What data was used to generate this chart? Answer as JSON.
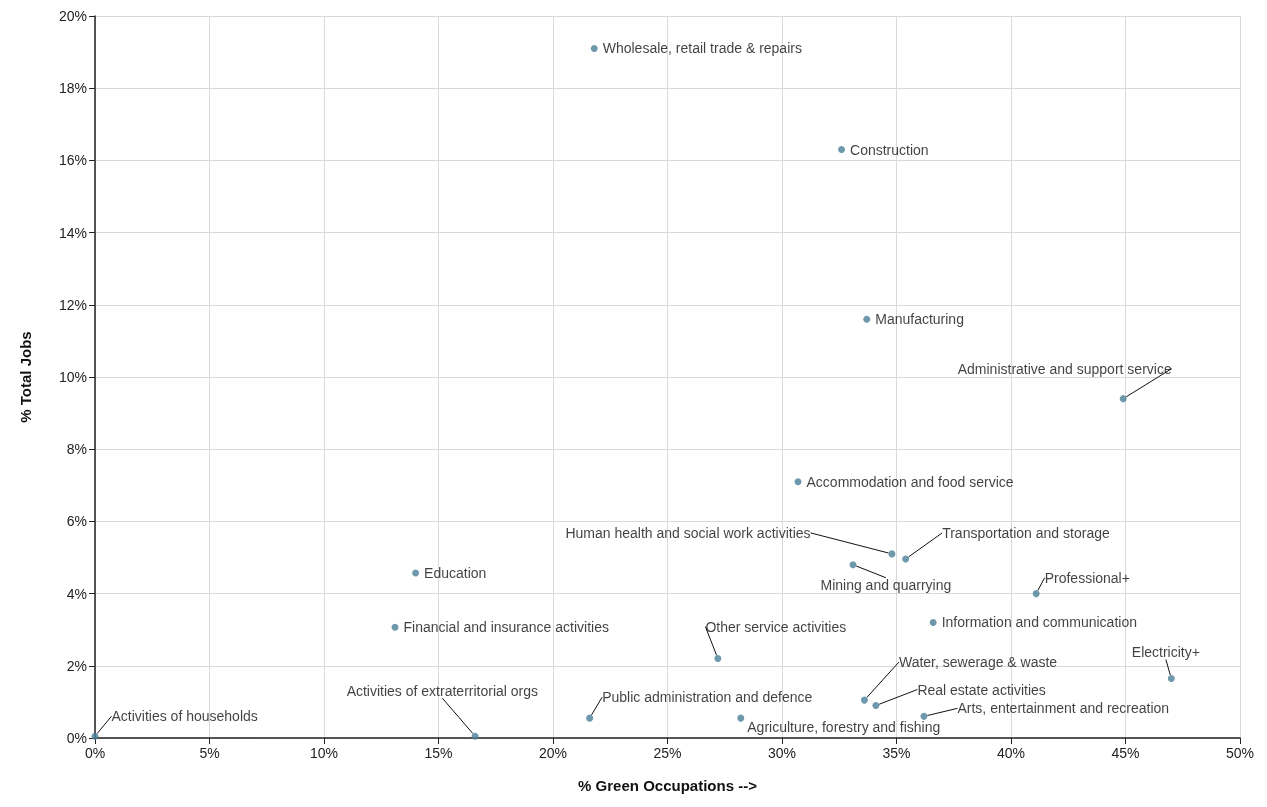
{
  "chart_data": {
    "type": "scatter",
    "xlabel": "% Green Occupations -->",
    "ylabel": "% Total Jobs",
    "x": [
      21.8,
      32.6,
      33.7,
      44.9,
      30.7,
      34.8,
      35.4,
      33.1,
      41.1,
      14.0,
      36.6,
      13.1,
      27.2,
      47.0,
      33.6,
      34.1,
      36.2,
      28.2,
      21.6,
      16.6,
      0
    ],
    "values": [
      19.1,
      16.3,
      11.6,
      9.4,
      7.1,
      5.1,
      4.96,
      4.8,
      4.0,
      4.57,
      3.2,
      3.07,
      2.2,
      1.65,
      1.05,
      0.9,
      0.6,
      0.55,
      0.55,
      0.05,
      0.05
    ],
    "value_labels": [
      "Wholesale, retail trade & repairs",
      "Construction",
      "Manufacturing",
      "Administrative and support service",
      "Accommodation and food service",
      "Human health and social work activities",
      "Transportation and storage",
      "Mining and quarrying",
      "Professional+",
      "Education",
      "Information and communication",
      "Financial and insurance activities",
      "Other service activities",
      "Electricity+",
      "Water, sewerage & waste",
      "Real estate activities",
      "Arts, entertainment and recreation",
      "Agriculture, forestry and fishing",
      "Public administration and defence",
      "Activities of extraterritorial orgs",
      "Activities of households"
    ],
    "color": "#4a7f99",
    "marker": "circle",
    "grid": true,
    "xlim": [
      0,
      50
    ],
    "xticks": [
      {
        "value": 0,
        "label": "0%"
      },
      {
        "value": 5,
        "label": "5%"
      },
      {
        "value": 10,
        "label": "10%"
      },
      {
        "value": 15,
        "label": "15%"
      },
      {
        "value": 20,
        "label": "20%"
      },
      {
        "value": 25,
        "label": "25%"
      },
      {
        "value": 30,
        "label": "30%"
      },
      {
        "value": 35,
        "label": "35%"
      },
      {
        "value": 40,
        "label": "40%"
      },
      {
        "value": 45,
        "label": "45%"
      },
      {
        "value": 50,
        "label": "50%"
      }
    ],
    "ylim": [
      0,
      20
    ],
    "yticks": [
      {
        "value": 0,
        "label": "0%"
      },
      {
        "value": 2,
        "label": "2%"
      },
      {
        "value": 4,
        "label": "4%"
      },
      {
        "value": 6,
        "label": "6%"
      },
      {
        "value": 8,
        "label": "8%"
      },
      {
        "value": 10,
        "label": "10%"
      },
      {
        "value": 12,
        "label": "12%"
      },
      {
        "value": 14,
        "label": "14%"
      },
      {
        "value": 16,
        "label": "16%"
      },
      {
        "value": 18,
        "label": "18%"
      },
      {
        "value": 20,
        "label": "20%"
      }
    ]
  }
}
